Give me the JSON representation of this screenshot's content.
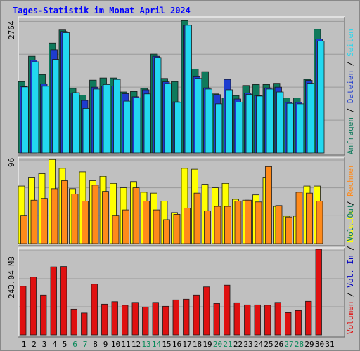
{
  "title": "Tages-Statistik im Monat April 2024",
  "colors": {
    "background": "#c0c0c0",
    "panel_bg": "#c0c0c0",
    "anfragen": "#0f7a5c",
    "dateien": "#1e3ccf",
    "seiten": "#22d8f0",
    "besuche": "#ffff00",
    "rechner": "#ff8a1a",
    "volumen": "#e01010",
    "vol_in": "#0000c0",
    "vol_out": "#0a7a5a",
    "title": "#0000ff",
    "weekend": "#0a8a5a"
  },
  "chart_data": [
    {
      "type": "bar",
      "panel": "requests",
      "ymax_label": "2764",
      "ylim": [
        0,
        2764
      ],
      "categories": [
        "1",
        "2",
        "3",
        "4",
        "5",
        "6",
        "7",
        "8",
        "9",
        "10",
        "11",
        "12",
        "13",
        "14",
        "15",
        "16",
        "17",
        "18",
        "19",
        "20",
        "21",
        "22",
        "23",
        "24",
        "25",
        "26",
        "27",
        "28",
        "29",
        "30",
        "31"
      ],
      "weekend_days": [
        "6",
        "7",
        "13",
        "14",
        "20",
        "21",
        "27",
        "28"
      ],
      "right_labels": [
        "Anfragen",
        "/",
        "Dateien",
        "/",
        "Seiten"
      ],
      "series": [
        {
          "name": "Anfragen",
          "values": [
            1480,
            2005,
            1625,
            2280,
            2550,
            1340,
            1200,
            1510,
            1555,
            1555,
            1265,
            1275,
            1340,
            2050,
            1545,
            1480,
            2745,
            1740,
            1685,
            1225,
            1140,
            1190,
            1400,
            1420,
            1420,
            1445,
            1140,
            1140,
            1525,
            2565,
            0
          ]
        },
        {
          "name": "Dateien",
          "values": [
            1380,
            1925,
            1435,
            2140,
            2520,
            1245,
            1090,
            1365,
            1390,
            1390,
            1230,
            1165,
            1310,
            2005,
            1475,
            1060,
            2650,
            1595,
            1350,
            1210,
            1525,
            1120,
            1245,
            1190,
            1350,
            1365,
            1050,
            1050,
            1505,
            2365,
            0
          ]
        },
        {
          "name": "Seiten",
          "values": [
            1370,
            1890,
            1385,
            1940,
            2495,
            1250,
            925,
            1325,
            1420,
            1525,
            1075,
            1145,
            1225,
            1980,
            1440,
            1050,
            2650,
            1545,
            1325,
            1020,
            1310,
            1055,
            1215,
            1180,
            1325,
            1265,
            1030,
            1020,
            1445,
            2320,
            0
          ]
        }
      ]
    },
    {
      "type": "bar",
      "panel": "visits",
      "ymax_label": "96",
      "ylim": [
        0,
        96
      ],
      "categories": [
        "1",
        "2",
        "3",
        "4",
        "5",
        "6",
        "7",
        "8",
        "9",
        "10",
        "11",
        "12",
        "13",
        "14",
        "15",
        "16",
        "17",
        "18",
        "19",
        "20",
        "21",
        "22",
        "23",
        "24",
        "25",
        "26",
        "27",
        "28",
        "29",
        "30",
        "31"
      ],
      "right_labels": [
        "Besuche",
        "/",
        "Rechner"
      ],
      "series": [
        {
          "name": "Besuche",
          "values": [
            65,
            75,
            79,
            95,
            85,
            62,
            81,
            71,
            76,
            68,
            63,
            70,
            58,
            57,
            48,
            35,
            85,
            84,
            67,
            63,
            68,
            50,
            49,
            55,
            75,
            42,
            31,
            31,
            65,
            65,
            0
          ]
        },
        {
          "name": "Rechner",
          "values": [
            32,
            49,
            51,
            62,
            71,
            56,
            48,
            66,
            59,
            32,
            38,
            63,
            48,
            38,
            27,
            33,
            40,
            57,
            37,
            42,
            42,
            48,
            49,
            47,
            87,
            43,
            30,
            58,
            57,
            48,
            0
          ]
        }
      ]
    },
    {
      "type": "bar",
      "panel": "volume",
      "ymax_label": "243.04 MB",
      "ylim": [
        0,
        243.04
      ],
      "categories": [
        "1",
        "2",
        "3",
        "4",
        "5",
        "6",
        "7",
        "8",
        "9",
        "10",
        "11",
        "12",
        "13",
        "14",
        "15",
        "16",
        "17",
        "18",
        "19",
        "20",
        "21",
        "22",
        "23",
        "24",
        "25",
        "26",
        "27",
        "28",
        "29",
        "30",
        "31"
      ],
      "right_labels": [
        "Volumen",
        "/",
        "Vol. In",
        "/",
        "Vol. Out"
      ],
      "series": [
        {
          "name": "Volumen",
          "values": [
            138,
            164,
            113,
            193,
            194,
            73,
            62,
            144,
            87,
            94,
            84,
            92,
            79,
            92,
            81,
            99,
            101,
            113,
            136,
            89,
            141,
            91,
            85,
            85,
            84,
            92,
            63,
            69,
            95,
            243,
            0
          ]
        }
      ]
    }
  ]
}
